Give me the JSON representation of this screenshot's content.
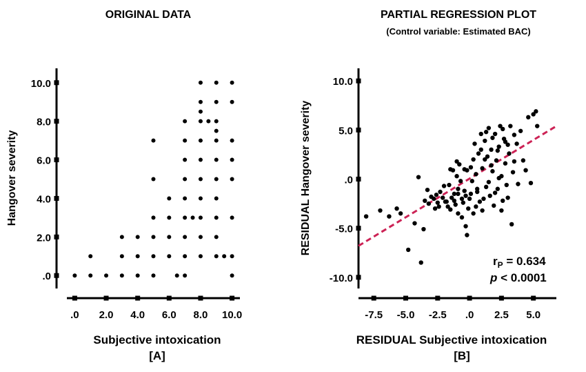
{
  "chart_data": [
    {
      "type": "scatter",
      "title": "ORIGINAL DATA",
      "xlabel": "Subjective intoxication",
      "ylabel": "Hangover severity",
      "panel_label": "[A]",
      "xlim": [
        -0.5,
        10.5
      ],
      "ylim": [
        -0.6,
        10.6
      ],
      "xticks": [
        0,
        2,
        4,
        6,
        8,
        10
      ],
      "xtick_labels": [
        ".0",
        "2.0",
        "4.0",
        "6.0",
        "8.0",
        "10.0"
      ],
      "yticks": [
        0,
        2,
        4,
        6,
        8,
        10
      ],
      "ytick_labels": [
        ".0",
        "2.0",
        "4.0",
        "6.0",
        "8.0",
        "10.0"
      ],
      "points": [
        [
          0,
          0
        ],
        [
          1,
          0
        ],
        [
          2,
          0
        ],
        [
          3,
          0
        ],
        [
          4,
          0
        ],
        [
          5,
          0
        ],
        [
          6.5,
          0
        ],
        [
          7,
          0
        ],
        [
          10,
          0
        ],
        [
          1,
          1
        ],
        [
          3,
          1
        ],
        [
          4,
          1
        ],
        [
          5,
          1
        ],
        [
          6,
          1
        ],
        [
          7,
          1
        ],
        [
          8,
          1
        ],
        [
          9,
          1
        ],
        [
          9.5,
          1
        ],
        [
          10,
          1
        ],
        [
          3,
          2
        ],
        [
          4,
          2
        ],
        [
          5,
          2
        ],
        [
          6,
          2
        ],
        [
          7,
          2
        ],
        [
          8,
          2
        ],
        [
          9,
          2
        ],
        [
          5,
          3
        ],
        [
          6,
          3
        ],
        [
          7,
          3
        ],
        [
          7.5,
          3
        ],
        [
          8,
          3
        ],
        [
          9,
          3
        ],
        [
          10,
          3
        ],
        [
          6,
          4
        ],
        [
          7,
          4
        ],
        [
          8,
          4
        ],
        [
          9,
          4
        ],
        [
          5,
          5
        ],
        [
          7,
          5
        ],
        [
          8,
          5
        ],
        [
          9,
          5
        ],
        [
          10,
          5
        ],
        [
          7,
          6
        ],
        [
          8,
          6
        ],
        [
          9,
          6
        ],
        [
          10,
          6
        ],
        [
          5,
          7
        ],
        [
          7,
          7
        ],
        [
          8,
          7
        ],
        [
          9,
          7
        ],
        [
          10,
          7
        ],
        [
          7,
          8
        ],
        [
          8,
          8
        ],
        [
          8.5,
          8
        ],
        [
          9,
          8
        ],
        [
          8,
          8.5
        ],
        [
          8,
          9
        ],
        [
          9,
          9
        ],
        [
          10,
          9
        ],
        [
          9,
          7.5
        ],
        [
          8,
          10
        ],
        [
          9,
          10
        ],
        [
          10,
          10
        ]
      ]
    },
    {
      "type": "scatter",
      "title": "PARTIAL REGRESSION PLOT",
      "subtitle": "(Control variable: Estimated BAC)",
      "xlabel": "RESIDUAL Subjective intoxication",
      "ylabel": "RESIDUAL Hangover severity",
      "panel_label": "[B]",
      "xlim": [
        -8.7,
        6.8
      ],
      "ylim": [
        -11.0,
        11.0
      ],
      "xticks": [
        -7.5,
        -5,
        -2.5,
        0,
        2.5,
        5
      ],
      "xtick_labels": [
        "-7.5",
        "-5.0",
        "-2.5",
        ".0",
        "2.5",
        "5.0"
      ],
      "yticks": [
        -10,
        -5,
        0,
        5,
        10
      ],
      "ytick_labels": [
        "-10.0",
        "-5.0",
        ".0",
        "5.0",
        "10.0"
      ],
      "regression_line": {
        "x1": -8.7,
        "y1": -6.8,
        "x2": 6.8,
        "y2": 5.4,
        "color": "#cc2255"
      },
      "stat_r_main": "r",
      "stat_r_sub": "P",
      "stat_r_value": " = 0.634",
      "stat_p_symbol": "p",
      "stat_p_value": " < 0.0001",
      "points": [
        [
          -8.1,
          -3.8
        ],
        [
          -7.0,
          -3.2
        ],
        [
          -6.3,
          -3.8
        ],
        [
          -5.7,
          -3.0
        ],
        [
          -5.4,
          -3.5
        ],
        [
          -4.8,
          -7.2
        ],
        [
          -4.3,
          -4.5
        ],
        [
          -4.0,
          0.2
        ],
        [
          -3.8,
          -8.5
        ],
        [
          -3.6,
          -5.1
        ],
        [
          -3.5,
          -2.2
        ],
        [
          -3.2,
          -2.5
        ],
        [
          -3.0,
          -1.8
        ],
        [
          -2.8,
          -2.0
        ],
        [
          -2.6,
          -1.6
        ],
        [
          -2.5,
          -2.4
        ],
        [
          -2.3,
          -1.3
        ],
        [
          -2.1,
          -1.9
        ],
        [
          -2.0,
          -0.7
        ],
        [
          -1.8,
          -2.3
        ],
        [
          -1.7,
          -2.8
        ],
        [
          -1.6,
          -0.6
        ],
        [
          -1.5,
          -3.1
        ],
        [
          -1.4,
          -1.9
        ],
        [
          -1.3,
          0.9
        ],
        [
          -1.2,
          -2.2
        ],
        [
          -1.1,
          -2.6
        ],
        [
          -1.0,
          0.3
        ],
        [
          -0.9,
          -1.5
        ],
        [
          -0.9,
          -3.5
        ],
        [
          -0.8,
          1.5
        ],
        [
          -0.7,
          -0.2
        ],
        [
          -0.6,
          -2.0
        ],
        [
          -0.5,
          -2.4
        ],
        [
          -0.4,
          1.0
        ],
        [
          -0.3,
          -4.8
        ],
        [
          -0.3,
          -1.7
        ],
        [
          -0.2,
          -5.7
        ],
        [
          -0.2,
          0.9
        ],
        [
          -0.1,
          -3.0
        ],
        [
          0.0,
          -2.0
        ],
        [
          0.1,
          1.2
        ],
        [
          0.2,
          -0.2
        ],
        [
          0.3,
          -3.5
        ],
        [
          0.4,
          3.6
        ],
        [
          0.5,
          0.5
        ],
        [
          0.6,
          -1.0
        ],
        [
          0.7,
          2.6
        ],
        [
          0.8,
          -2.3
        ],
        [
          0.9,
          4.6
        ],
        [
          1.0,
          1.1
        ],
        [
          1.1,
          -2.0
        ],
        [
          1.2,
          3.9
        ],
        [
          1.3,
          -0.8
        ],
        [
          1.4,
          2.3
        ],
        [
          1.5,
          5.2
        ],
        [
          1.6,
          -1.7
        ],
        [
          1.7,
          3.0
        ],
        [
          1.8,
          0.8
        ],
        [
          1.9,
          -2.7
        ],
        [
          2.0,
          4.6
        ],
        [
          2.1,
          1.9
        ],
        [
          2.2,
          -1.0
        ],
        [
          2.3,
          3.3
        ],
        [
          2.4,
          5.4
        ],
        [
          2.5,
          0.3
        ],
        [
          2.6,
          -2.2
        ],
        [
          2.7,
          4.1
        ],
        [
          2.8,
          1.6
        ],
        [
          2.9,
          -0.6
        ],
        [
          3.0,
          3.5
        ],
        [
          3.1,
          2.6
        ],
        [
          3.2,
          5.4
        ],
        [
          3.3,
          -4.6
        ],
        [
          3.4,
          0.7
        ],
        [
          3.5,
          1.8
        ],
        [
          3.7,
          3.6
        ],
        [
          3.8,
          -0.5
        ],
        [
          4.0,
          4.9
        ],
        [
          4.2,
          1.9
        ],
        [
          4.4,
          0.9
        ],
        [
          4.6,
          6.3
        ],
        [
          4.8,
          -0.4
        ],
        [
          5.0,
          6.6
        ],
        [
          5.2,
          6.9
        ],
        [
          5.3,
          5.4
        ],
        [
          -3.3,
          -1.1
        ],
        [
          -2.4,
          -2.8
        ],
        [
          -1.9,
          -2.3
        ],
        [
          -1.2,
          -1.5
        ],
        [
          -0.6,
          -3.9
        ],
        [
          0.3,
          2.0
        ],
        [
          0.6,
          -1.3
        ],
        [
          0.9,
          3.0
        ],
        [
          1.2,
          2.0
        ],
        [
          1.5,
          -0.3
        ],
        [
          1.8,
          4.2
        ],
        [
          2.0,
          -1.4
        ],
        [
          2.2,
          2.9
        ],
        [
          2.5,
          -3.2
        ],
        [
          2.8,
          3.8
        ],
        [
          3.0,
          -1.9
        ],
        [
          -1.5,
          1.0
        ],
        [
          -0.9,
          -1.0
        ],
        [
          0.1,
          -1.5
        ],
        [
          1.0,
          -3.2
        ],
        [
          1.3,
          4.8
        ],
        [
          2.6,
          5.1
        ],
        [
          3.5,
          4.5
        ],
        [
          -2.7,
          -3.0
        ],
        [
          -1.0,
          1.8
        ],
        [
          -0.4,
          -1.2
        ],
        [
          0.5,
          -2.8
        ],
        [
          1.7,
          1.4
        ],
        [
          2.3,
          0.1
        ]
      ]
    }
  ]
}
